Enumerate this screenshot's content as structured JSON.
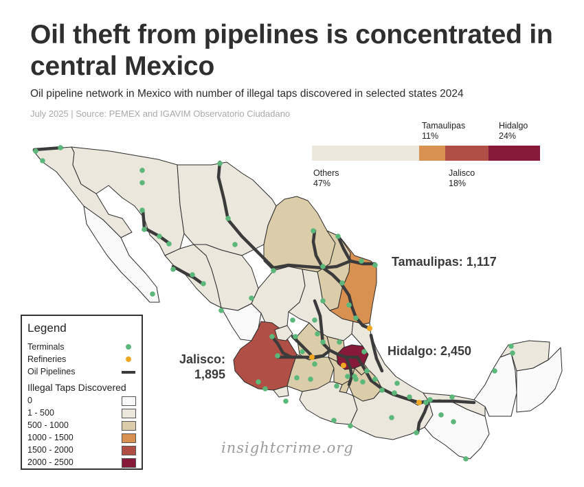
{
  "header": {
    "title": "Oil theft from pipelines is concentrated in central Mexico",
    "subtitle": "Oil pipeline network in Mexico with number of illegal taps discovered in selected states 2024",
    "source": "July 2025 | Source: PEMEX and IGAVIM Observatorio Ciudadano"
  },
  "share_bar": {
    "segments": [
      {
        "name": "Others",
        "label": "47%",
        "value": 47,
        "color": "#ebe7dd"
      },
      {
        "name": "Tamaulipas",
        "label": "11%",
        "value": 11,
        "color": "#d99152"
      },
      {
        "name": "Jalisco",
        "label": "18%",
        "value": 18,
        "color": "#b04f45"
      },
      {
        "name": "Hidalgo",
        "label": "24%",
        "value": 24,
        "color": "#87193a"
      }
    ]
  },
  "callouts": {
    "tamaulipas": "Tamaulipas: 1,117",
    "hidalgo": "Hidalgo: 2,450",
    "jalisco_line1": "Jalisco:",
    "jalisco_line2": "1,895"
  },
  "legend": {
    "title": "Legend",
    "terminals": "Terminals",
    "refineries": "Refineries",
    "pipelines": "Oil Pipelines",
    "taps_title": "Illegal Taps Discovered",
    "bins": [
      {
        "label": "0",
        "color": "#fafafa"
      },
      {
        "label": "1 - 500",
        "color": "#ebe7dd"
      },
      {
        "label": "500 - 1000",
        "color": "#dccdaa"
      },
      {
        "label": "1000 - 1500",
        "color": "#d99152"
      },
      {
        "label": "1500 - 2000",
        "color": "#b04f45"
      },
      {
        "label": "2000 - 2500",
        "color": "#87193a"
      }
    ]
  },
  "colors": {
    "terminal": "#5cb87a",
    "refinery": "#f0a822",
    "pipeline": "#3b3b3b",
    "border": "#2a2a2a"
  },
  "watermark": "insightcrime.org"
}
